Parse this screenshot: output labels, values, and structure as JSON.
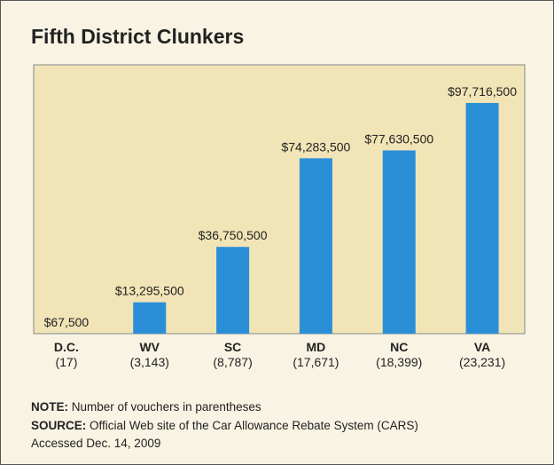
{
  "chart_data": {
    "type": "bar",
    "title": "Fifth District Clunkers",
    "categories": [
      "D.C.",
      "WV",
      "SC",
      "MD",
      "NC",
      "VA"
    ],
    "category_notes": [
      "(17)",
      "(3,143)",
      "(8,787)",
      "(17,671)",
      "(18,399)",
      "(23,231)"
    ],
    "values": [
      67500,
      13295500,
      36750500,
      74283500,
      77630500,
      97716500
    ],
    "value_labels": [
      "$67,500",
      "$13,295,500",
      "$36,750,500",
      "$74,283,500",
      "$77,630,500",
      "$97,716,500"
    ],
    "color": "#2b8fd8",
    "note_label": "NOTE:",
    "note": "Number of vouchers in parentheses",
    "source_label": "SOURCE:",
    "source": "Official Web site of the Car Allowance Rebate System (CARS)",
    "accessed": "Accessed Dec. 14, 2009"
  }
}
